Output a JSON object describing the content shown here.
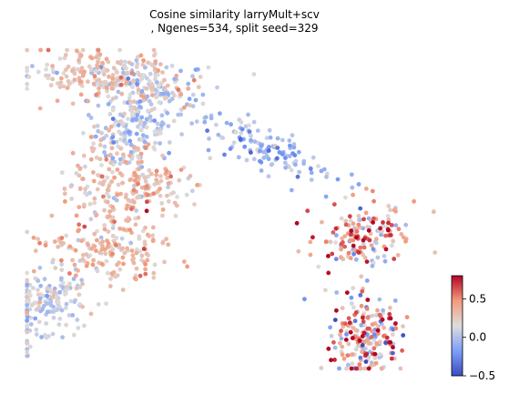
{
  "chart_data": {
    "type": "scatter",
    "title_lines": [
      "Cosine similarity larryMult+scv",
      ", Ngenes=534, split seed=329"
    ],
    "xlabel": "",
    "ylabel": "",
    "axes_visible": false,
    "grid": false,
    "colormap": "coolwarm",
    "color_range": [
      -0.5,
      0.8
    ],
    "colorbar": {
      "placement": "bottom-right",
      "ticks": [
        {
          "value": 0.5,
          "label": "0.5"
        },
        {
          "value": 0.0,
          "label": "0.0"
        },
        {
          "value": -0.5,
          "label": "−0.5"
        }
      ]
    },
    "point_regions": [
      {
        "name": "top-arm",
        "n": 240,
        "cx": 0.195,
        "cy": 0.92,
        "sx": 0.095,
        "sy": 0.04,
        "mean": 0.24,
        "sd": 0.14,
        "rot": -8
      },
      {
        "name": "top-right-shoulder",
        "n": 110,
        "cx": 0.31,
        "cy": 0.84,
        "sx": 0.06,
        "sy": 0.05,
        "mean": 0.05,
        "sd": 0.12,
        "rot": -30
      },
      {
        "name": "center-upper",
        "n": 160,
        "cx": 0.245,
        "cy": 0.74,
        "sx": 0.05,
        "sy": 0.07,
        "mean": 0.06,
        "sd": 0.12,
        "rot": 0
      },
      {
        "name": "center-lower",
        "n": 180,
        "cx": 0.225,
        "cy": 0.56,
        "sx": 0.055,
        "sy": 0.09,
        "mean": 0.27,
        "sd": 0.12,
        "rot": 10
      },
      {
        "name": "center-right-spread",
        "n": 60,
        "cx": 0.32,
        "cy": 0.58,
        "sx": 0.05,
        "sy": 0.04,
        "mean": 0.3,
        "sd": 0.15,
        "rot": 0
      },
      {
        "name": "middle-band",
        "n": 150,
        "cx": 0.2,
        "cy": 0.37,
        "sx": 0.075,
        "sy": 0.05,
        "mean": 0.32,
        "sd": 0.12,
        "rot": -15
      },
      {
        "name": "left-arm",
        "n": 190,
        "cx": 0.055,
        "cy": 0.21,
        "sx": 0.05,
        "sy": 0.06,
        "mean": 0.09,
        "sd": 0.1,
        "rot": -25
      },
      {
        "name": "right-band",
        "n": 130,
        "cx": 0.58,
        "cy": 0.68,
        "sx": 0.09,
        "sy": 0.035,
        "mean": -0.07,
        "sd": 0.13,
        "rot": -30
      },
      {
        "name": "right-wing",
        "n": 160,
        "cx": 0.81,
        "cy": 0.42,
        "sx": 0.055,
        "sy": 0.06,
        "mean": 0.35,
        "sd": 0.32,
        "rot": -25
      },
      {
        "name": "bottom-right-cluster",
        "n": 210,
        "cx": 0.8,
        "cy": 0.11,
        "sx": 0.04,
        "sy": 0.065,
        "mean": 0.28,
        "sd": 0.36,
        "rot": 0
      }
    ],
    "random_seed": 329
  }
}
